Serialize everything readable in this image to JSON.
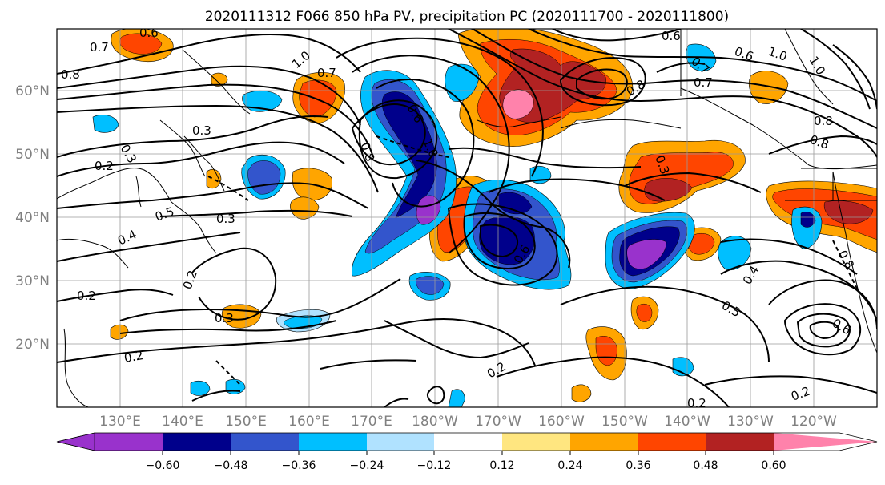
{
  "title": "2020111312 F066 850 hPa PV, precipitation PC (2020111700 - 2020111800)",
  "map": {
    "lat_labels": [
      "60°N",
      "50°N",
      "40°N",
      "30°N",
      "20°N"
    ],
    "lon_labels": [
      "130°E",
      "140°E",
      "150°E",
      "160°E",
      "170°E",
      "180°W",
      "170°W",
      "160°W",
      "150°W",
      "140°W",
      "130°W",
      "120°W"
    ],
    "pv_contour_labels": [
      "0.6",
      "0.7",
      "0.8",
      "1.0",
      "0.7",
      "0.3",
      "0.3",
      "0.2",
      "0.5",
      "0.4",
      "0.3",
      "0.2",
      "0.2",
      "0.3",
      "0.2",
      "0.6",
      "0.8",
      "1.0",
      "0.6",
      "0.3",
      "0.4",
      "0.5",
      "0.6",
      "0.2",
      "0.2",
      "0.2",
      "0.8",
      "0.7",
      "0.8",
      "1.0",
      "0.8",
      "1.0",
      "0.6",
      "0.7",
      "0.8",
      "0.6"
    ]
  },
  "colorbar": {
    "tick_labels": [
      "−0.60",
      "−0.48",
      "−0.36",
      "−0.24",
      "−0.12",
      "0.12",
      "0.24",
      "0.36",
      "0.48",
      "0.60"
    ],
    "colors": [
      "#9932cc",
      "#00008b",
      "#3355cc",
      "#00bfff",
      "#b0e2ff",
      "#ffffff",
      "#ffe680",
      "#ffa500",
      "#ff4500",
      "#b22222",
      "#ff82ab"
    ]
  }
}
